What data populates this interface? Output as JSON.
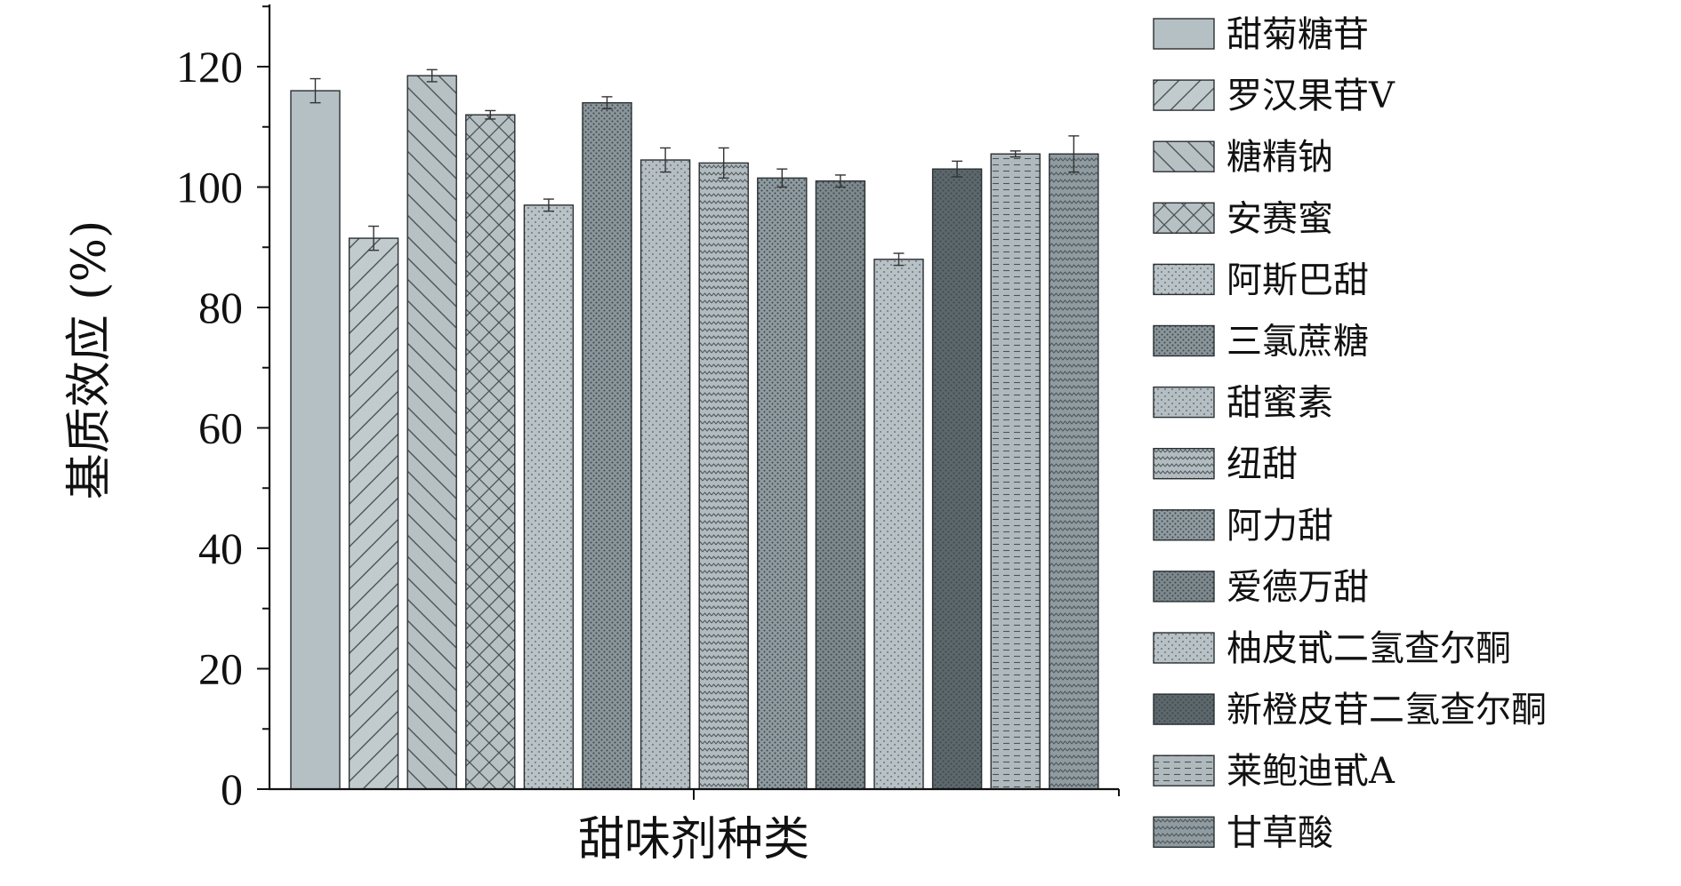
{
  "chart_data": {
    "type": "bar",
    "xlabel": "甜味剂种类",
    "ylabel": "基质效应 (%)",
    "ylim": [
      0,
      130
    ],
    "yticks": [
      0,
      20,
      40,
      60,
      80,
      100,
      120
    ],
    "grid": false,
    "legend_position": "right",
    "series": [
      {
        "name": "甜菊糖苷",
        "value": 116,
        "error": 2,
        "color": "#b5c0c4",
        "pattern": "solid"
      },
      {
        "name": "罗汉果苷V",
        "value": 91.5,
        "error": 2,
        "color": "#c1cbce",
        "pattern": "diag-forward"
      },
      {
        "name": "糖精钠",
        "value": 118.5,
        "error": 1,
        "color": "#b7c1c4",
        "pattern": "diag-back"
      },
      {
        "name": "安赛蜜",
        "value": 112,
        "error": 0.7,
        "color": "#b7c1c4",
        "pattern": "crosshatch"
      },
      {
        "name": "阿斯巴甜",
        "value": 97,
        "error": 1,
        "color": "#b9c2c6",
        "pattern": "dots"
      },
      {
        "name": "三氯蔗糖",
        "value": 114,
        "error": 1,
        "color": "#8a969b",
        "pattern": "dense-dots"
      },
      {
        "name": "甜蜜素",
        "value": 104.5,
        "error": 2,
        "color": "#b5bfc3",
        "pattern": "dots"
      },
      {
        "name": "纽甜",
        "value": 104,
        "error": 2.5,
        "color": "#b2bcc0",
        "pattern": "zigzag"
      },
      {
        "name": "阿力甜",
        "value": 101.5,
        "error": 1.5,
        "color": "#8f9ba0",
        "pattern": "dense-dots"
      },
      {
        "name": "爱德万甜",
        "value": 101,
        "error": 1,
        "color": "#7d898e",
        "pattern": "dense-dots"
      },
      {
        "name": "柚皮甙二氢查尔酮",
        "value": 88,
        "error": 1,
        "color": "#b8c1c5",
        "pattern": "dots"
      },
      {
        "name": "新橙皮苷二氢查尔酮",
        "value": 103,
        "error": 1.3,
        "color": "#5d686c",
        "pattern": "dense-dots"
      },
      {
        "name": "莱鲍迪甙A",
        "value": 105.5,
        "error": 0.5,
        "color": "#b0babe",
        "pattern": "dashes"
      },
      {
        "name": "甘草酸",
        "value": 105.5,
        "error": 3,
        "color": "#8f9ba0",
        "pattern": "zigzag"
      }
    ]
  }
}
